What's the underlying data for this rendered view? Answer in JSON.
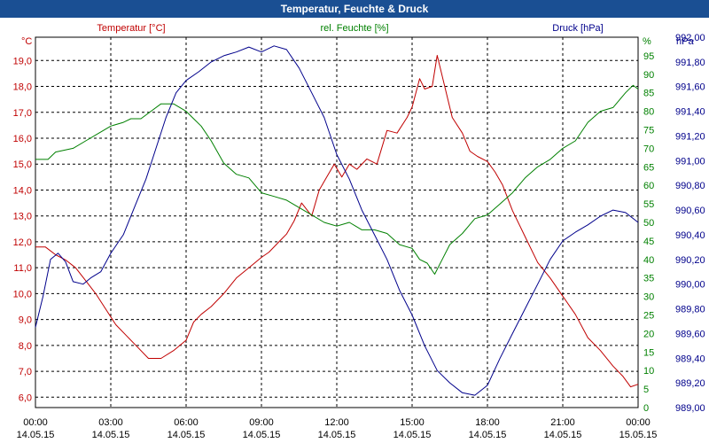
{
  "window": {
    "title": "Temperatur, Feuchte & Druck"
  },
  "chart_data": {
    "type": "line",
    "title": "Temperatur, Feuchte & Druck",
    "x_unit": "hours since 14.05.15 00:00",
    "xlim": [
      0,
      24
    ],
    "x_ticks": [
      {
        "value": 0,
        "time": "00:00",
        "date": "14.05.15"
      },
      {
        "value": 3,
        "time": "03:00",
        "date": "14.05.15"
      },
      {
        "value": 6,
        "time": "06:00",
        "date": "14.05.15"
      },
      {
        "value": 9,
        "time": "09:00",
        "date": "14.05.15"
      },
      {
        "value": 12,
        "time": "12:00",
        "date": "14.05.15"
      },
      {
        "value": 15,
        "time": "15:00",
        "date": "14.05.15"
      },
      {
        "value": 18,
        "time": "18:00",
        "date": "14.05.15"
      },
      {
        "value": 21,
        "time": "21:00",
        "date": "14.05.15"
      },
      {
        "value": 24,
        "time": "00:00",
        "date": "15.05.15"
      }
    ],
    "axes": {
      "temp": {
        "unit": "°C",
        "label": "Temperatur [°C]",
        "color": "#c00000",
        "ylim": [
          5.6,
          19.9
        ],
        "ticks": [
          "6,0",
          "7,0",
          "8,0",
          "9,0",
          "10,0",
          "11,0",
          "12,0",
          "13,0",
          "14,0",
          "15,0",
          "16,0",
          "17,0",
          "18,0",
          "19,0"
        ],
        "tick_values": [
          6,
          7,
          8,
          9,
          10,
          11,
          12,
          13,
          14,
          15,
          16,
          17,
          18,
          19
        ]
      },
      "hum": {
        "unit": "%",
        "label": "rel. Feuchte [%]",
        "color": "#008000",
        "ylim": [
          0,
          100
        ],
        "ticks": [
          "0",
          "5",
          "10",
          "15",
          "20",
          "25",
          "30",
          "35",
          "40",
          "45",
          "50",
          "55",
          "60",
          "65",
          "70",
          "75",
          "80",
          "85",
          "90",
          "95"
        ],
        "tick_values": [
          0,
          5,
          10,
          15,
          20,
          25,
          30,
          35,
          40,
          45,
          50,
          55,
          60,
          65,
          70,
          75,
          80,
          85,
          90,
          95
        ]
      },
      "press": {
        "unit": "hPa",
        "label": "Druck [hPa]",
        "color": "#00008b",
        "ylim": [
          989.0,
          992.0
        ],
        "ticks": [
          "989,00",
          "989,20",
          "989,40",
          "989,60",
          "989,80",
          "990,00",
          "990,20",
          "990,40",
          "990,60",
          "990,80",
          "991,00",
          "991,20",
          "991,40",
          "991,60",
          "991,80",
          "992,00"
        ],
        "tick_values": [
          989.0,
          989.2,
          989.4,
          989.6,
          989.8,
          990.0,
          990.2,
          990.4,
          990.6,
          990.8,
          991.0,
          991.2,
          991.4,
          991.6,
          991.8,
          992.0
        ]
      }
    },
    "series": [
      {
        "name": "Temperatur",
        "axis": "temp",
        "color": "#c00000",
        "points": [
          [
            0,
            11.8
          ],
          [
            0.4,
            11.8
          ],
          [
            0.8,
            11.5
          ],
          [
            1.2,
            11.3
          ],
          [
            1.6,
            11.0
          ],
          [
            2.0,
            10.5
          ],
          [
            2.4,
            10.0
          ],
          [
            2.8,
            9.4
          ],
          [
            3.2,
            8.8
          ],
          [
            3.6,
            8.4
          ],
          [
            4.0,
            8.0
          ],
          [
            4.5,
            7.5
          ],
          [
            5.0,
            7.5
          ],
          [
            5.5,
            7.8
          ],
          [
            6.0,
            8.2
          ],
          [
            6.3,
            8.9
          ],
          [
            6.6,
            9.2
          ],
          [
            7.0,
            9.5
          ],
          [
            7.5,
            10.0
          ],
          [
            8.0,
            10.6
          ],
          [
            8.5,
            11.0
          ],
          [
            9.0,
            11.4
          ],
          [
            9.3,
            11.6
          ],
          [
            9.7,
            12.0
          ],
          [
            10.0,
            12.3
          ],
          [
            10.3,
            12.8
          ],
          [
            10.6,
            13.5
          ],
          [
            11.0,
            13.0
          ],
          [
            11.3,
            14.0
          ],
          [
            11.6,
            14.5
          ],
          [
            11.9,
            15.0
          ],
          [
            12.2,
            14.5
          ],
          [
            12.5,
            15.0
          ],
          [
            12.8,
            14.8
          ],
          [
            13.2,
            15.2
          ],
          [
            13.6,
            15.0
          ],
          [
            14.0,
            16.3
          ],
          [
            14.4,
            16.2
          ],
          [
            14.8,
            16.8
          ],
          [
            15.0,
            17.2
          ],
          [
            15.3,
            18.3
          ],
          [
            15.5,
            17.9
          ],
          [
            15.8,
            18.0
          ],
          [
            16.0,
            19.2
          ],
          [
            16.3,
            18.0
          ],
          [
            16.6,
            16.8
          ],
          [
            17.0,
            16.2
          ],
          [
            17.3,
            15.5
          ],
          [
            17.6,
            15.3
          ],
          [
            18.0,
            15.1
          ],
          [
            18.3,
            14.7
          ],
          [
            18.6,
            14.2
          ],
          [
            19.0,
            13.2
          ],
          [
            19.5,
            12.2
          ],
          [
            20.0,
            11.2
          ],
          [
            20.5,
            10.6
          ],
          [
            21.0,
            9.9
          ],
          [
            21.5,
            9.2
          ],
          [
            22.0,
            8.3
          ],
          [
            22.5,
            7.8
          ],
          [
            23.0,
            7.2
          ],
          [
            23.4,
            6.8
          ],
          [
            23.7,
            6.4
          ],
          [
            24.0,
            6.5
          ]
        ]
      },
      {
        "name": "rel. Feuchte",
        "axis": "hum",
        "color": "#008000",
        "points": [
          [
            0,
            67
          ],
          [
            0.5,
            67
          ],
          [
            0.8,
            69
          ],
          [
            1.5,
            70
          ],
          [
            2.0,
            72
          ],
          [
            2.5,
            74
          ],
          [
            3.0,
            76
          ],
          [
            3.5,
            77
          ],
          [
            3.8,
            78
          ],
          [
            4.2,
            78
          ],
          [
            4.6,
            80
          ],
          [
            5.0,
            82
          ],
          [
            5.5,
            82
          ],
          [
            6.0,
            80
          ],
          [
            6.3,
            78
          ],
          [
            6.6,
            76
          ],
          [
            7.0,
            72
          ],
          [
            7.5,
            66
          ],
          [
            8.0,
            63
          ],
          [
            8.5,
            62
          ],
          [
            9.0,
            58
          ],
          [
            9.5,
            57
          ],
          [
            10.0,
            56
          ],
          [
            10.5,
            54
          ],
          [
            11.0,
            52
          ],
          [
            11.5,
            50
          ],
          [
            12.0,
            49
          ],
          [
            12.5,
            50
          ],
          [
            13.0,
            48
          ],
          [
            13.5,
            48
          ],
          [
            14.0,
            47
          ],
          [
            14.5,
            44
          ],
          [
            15.0,
            43
          ],
          [
            15.3,
            40
          ],
          [
            15.6,
            39
          ],
          [
            15.9,
            36
          ],
          [
            16.2,
            40
          ],
          [
            16.5,
            44
          ],
          [
            17.0,
            47
          ],
          [
            17.5,
            51
          ],
          [
            18.0,
            52
          ],
          [
            18.5,
            55
          ],
          [
            19.0,
            58
          ],
          [
            19.5,
            62
          ],
          [
            20.0,
            65
          ],
          [
            20.5,
            67
          ],
          [
            21.0,
            70
          ],
          [
            21.5,
            72
          ],
          [
            22.0,
            77
          ],
          [
            22.5,
            80
          ],
          [
            23.0,
            81
          ],
          [
            23.5,
            85
          ],
          [
            23.8,
            87
          ],
          [
            24.0,
            86
          ]
        ]
      },
      {
        "name": "Druck",
        "axis": "press",
        "color": "#00008b",
        "points": [
          [
            0,
            989.65
          ],
          [
            0.3,
            989.9
          ],
          [
            0.6,
            990.2
          ],
          [
            0.9,
            990.25
          ],
          [
            1.2,
            990.18
          ],
          [
            1.5,
            990.02
          ],
          [
            1.9,
            990.0
          ],
          [
            2.2,
            990.05
          ],
          [
            2.6,
            990.1
          ],
          [
            3.0,
            990.25
          ],
          [
            3.5,
            990.4
          ],
          [
            4.0,
            990.65
          ],
          [
            4.4,
            990.85
          ],
          [
            4.8,
            991.1
          ],
          [
            5.2,
            991.35
          ],
          [
            5.6,
            991.55
          ],
          [
            6.0,
            991.65
          ],
          [
            6.5,
            991.72
          ],
          [
            7.0,
            991.8
          ],
          [
            7.5,
            991.85
          ],
          [
            8.0,
            991.88
          ],
          [
            8.5,
            991.92
          ],
          [
            9.0,
            991.88
          ],
          [
            9.5,
            991.93
          ],
          [
            10.0,
            991.9
          ],
          [
            10.5,
            991.75
          ],
          [
            11.0,
            991.55
          ],
          [
            11.5,
            991.35
          ],
          [
            12.0,
            991.05
          ],
          [
            12.5,
            990.85
          ],
          [
            13.0,
            990.6
          ],
          [
            13.5,
            990.4
          ],
          [
            14.0,
            990.2
          ],
          [
            14.5,
            989.95
          ],
          [
            15.0,
            989.75
          ],
          [
            15.5,
            989.5
          ],
          [
            16.0,
            989.3
          ],
          [
            16.5,
            989.2
          ],
          [
            17.0,
            989.12
          ],
          [
            17.5,
            989.1
          ],
          [
            18.0,
            989.18
          ],
          [
            18.5,
            989.4
          ],
          [
            19.0,
            989.6
          ],
          [
            19.5,
            989.8
          ],
          [
            20.0,
            990.0
          ],
          [
            20.5,
            990.2
          ],
          [
            21.0,
            990.35
          ],
          [
            21.5,
            990.42
          ],
          [
            22.0,
            990.48
          ],
          [
            22.5,
            990.55
          ],
          [
            23.0,
            990.6
          ],
          [
            23.5,
            990.58
          ],
          [
            24.0,
            990.5
          ]
        ]
      }
    ]
  }
}
